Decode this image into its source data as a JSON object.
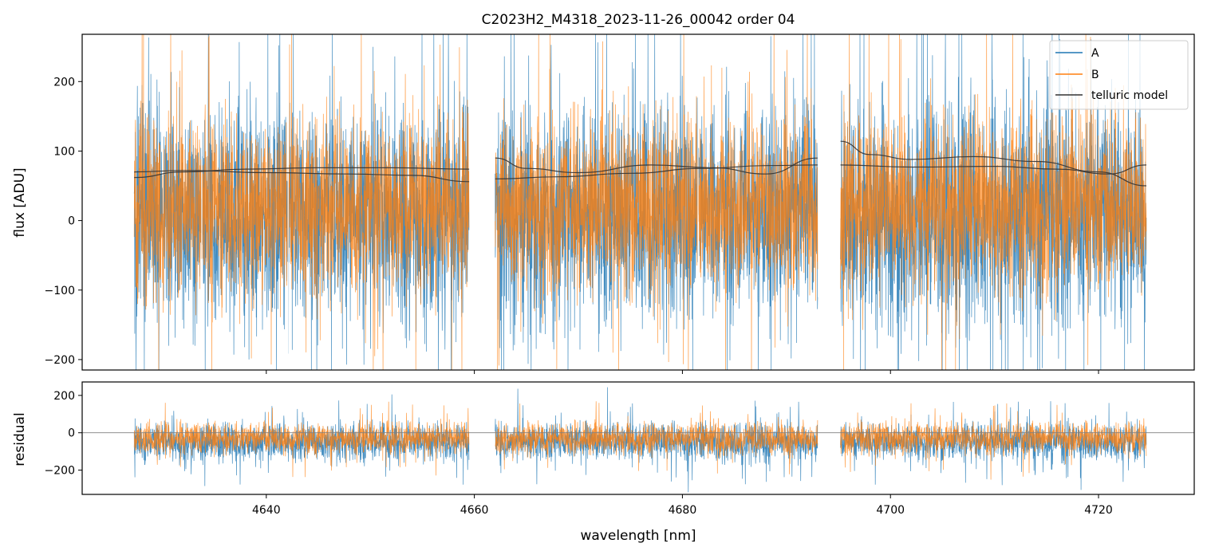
{
  "title": "C2023H2_M4318_2023-11-26_00042  order 04",
  "colors": {
    "A": "#1f77b4",
    "B": "#ff7f0e",
    "telluric": "#333333",
    "zero": "#808080"
  },
  "chart_data": [
    {
      "type": "line",
      "panel": "top",
      "title": "C2023H2_M4318_2023-11-26_00042  order 04",
      "xlabel": "",
      "ylabel": "flux [ADU]",
      "xlim": [
        4622.3,
        4729.2
      ],
      "ylim": [
        -215,
        268
      ],
      "xticks": [
        4640,
        4660,
        4680,
        4700,
        4720
      ],
      "yticks": [
        -200,
        -100,
        0,
        100,
        200
      ],
      "ytick_labels": [
        "−200",
        "−100",
        "0",
        "100",
        "200"
      ],
      "legend": {
        "placement": "top-right",
        "entries": [
          "A",
          "B",
          "telluric model"
        ]
      },
      "grid": false,
      "segments": [
        {
          "xrange": [
            4627.3,
            4659.5
          ],
          "gaps": [
            4633.8,
            4642.1
          ]
        },
        {
          "xrange": [
            4662.0,
            4693.0
          ],
          "gaps": [
            4681.5
          ]
        },
        {
          "xrange": [
            4695.2,
            4724.6
          ],
          "gaps": []
        }
      ],
      "series": [
        {
          "name": "A",
          "kind": "noisy-spectrum",
          "mean": 10,
          "spread": 190,
          "clip": [
            -215,
            268
          ]
        },
        {
          "name": "B",
          "kind": "noisy-spectrum",
          "mean": 22,
          "spread": 150,
          "clip": [
            -215,
            268
          ]
        },
        {
          "name": "telluric model",
          "lines": [
            {
              "x": [
                4627.3,
                4632,
                4638,
                4645,
                4652,
                4659.5
              ],
              "y": [
                62,
                70,
                74,
                76,
                76,
                74
              ]
            },
            {
              "x": [
                4627.3,
                4632,
                4640,
                4648,
                4654,
                4659.5
              ],
              "y": [
                70,
                72,
                69,
                67,
                65,
                56
              ]
            },
            {
              "x": [
                4662.0,
                4665,
                4670,
                4677,
                4683,
                4688,
                4693.0
              ],
              "y": [
                90,
                75,
                69,
                80,
                76,
                67,
                90
              ]
            },
            {
              "x": [
                4662.0,
                4668,
                4675,
                4682,
                4688,
                4693.0
              ],
              "y": [
                60,
                63,
                68,
                75,
                79,
                80
              ]
            },
            {
              "x": [
                4695.2,
                4698,
                4702,
                4708,
                4714,
                4720,
                4724.6
              ],
              "y": [
                114,
                95,
                88,
                92,
                85,
                70,
                50
              ]
            },
            {
              "x": [
                4695.2,
                4702,
                4710,
                4716,
                4721,
                4724.6
              ],
              "y": [
                80,
                77,
                78,
                74,
                67,
                80
              ]
            }
          ]
        }
      ]
    },
    {
      "type": "line",
      "panel": "bottom",
      "xlabel": "wavelength [nm]",
      "ylabel": "residual",
      "xlim": [
        4622.3,
        4729.2
      ],
      "ylim": [
        -330,
        272
      ],
      "xticks": [
        4640,
        4660,
        4680,
        4700,
        4720
      ],
      "xtick_labels": [
        "4640",
        "4660",
        "4680",
        "4700",
        "4720"
      ],
      "yticks": [
        -200,
        0,
        200
      ],
      "ytick_labels": [
        "−200",
        "0",
        "200"
      ],
      "zero_line": 0,
      "grid": false,
      "series": [
        {
          "name": "A",
          "kind": "noisy-spectrum",
          "mean": -50,
          "spread": 120,
          "clip": [
            -330,
            272
          ]
        },
        {
          "name": "B",
          "kind": "noisy-spectrum",
          "mean": -30,
          "spread": 100,
          "clip": [
            -330,
            272
          ]
        }
      ]
    }
  ]
}
